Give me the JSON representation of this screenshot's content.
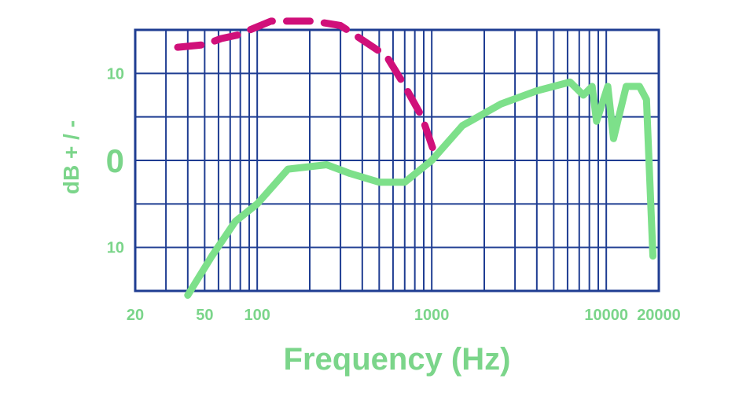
{
  "chart_data": {
    "type": "line",
    "title": "",
    "xlabel": "Frequency (Hz)",
    "ylabel": "dB + / -",
    "x_scale": "log",
    "xlim": [
      20,
      20000
    ],
    "ylim": [
      -15,
      15
    ],
    "grid": true,
    "x_tick_labels": [
      "20",
      "50",
      "100",
      "1000",
      "10000",
      "20000"
    ],
    "x_tick_values": [
      20,
      50,
      100,
      1000,
      10000,
      20000
    ],
    "y_tick_labels": [
      "10",
      "0",
      "10"
    ],
    "y_tick_values": [
      10,
      0,
      -10
    ],
    "series": [
      {
        "color": "#d0107a",
        "style": "dashed",
        "x": [
          35,
          50,
          62,
          77,
          120,
          210,
          300,
          390,
          550,
          680,
          880,
          1050
        ],
        "y": [
          13,
          13.3,
          14,
          14.4,
          16,
          16,
          15.5,
          14,
          12,
          9,
          5,
          0.5
        ]
      },
      {
        "color": "#7de08a",
        "style": "solid",
        "x": [
          40,
          55,
          75,
          100,
          150,
          250,
          340,
          500,
          700,
          1000,
          1500,
          2500,
          4000,
          6200,
          7400,
          8300,
          8800,
          10200,
          11000,
          13000,
          15500,
          17000,
          18500
        ],
        "y": [
          -15.5,
          -11,
          -7,
          -5,
          -1,
          -0.5,
          -1.5,
          -2.5,
          -2.5,
          0,
          4,
          6.5,
          8,
          9,
          7.5,
          8.5,
          4.5,
          8.5,
          2.5,
          8.5,
          8.5,
          7,
          -11
        ]
      }
    ]
  }
}
